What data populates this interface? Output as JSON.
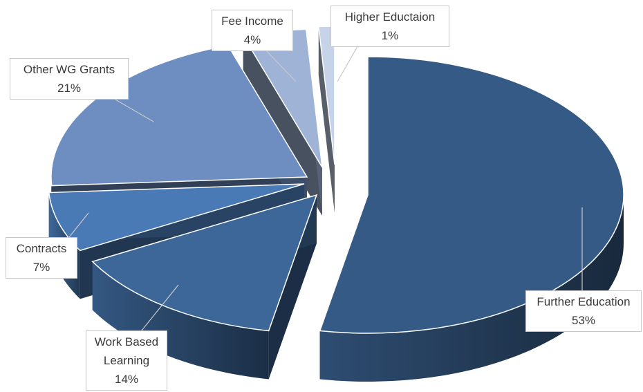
{
  "chart_data": {
    "type": "pie",
    "style": "3d-exploded",
    "slices": [
      {
        "label": "Further Education",
        "value": 53,
        "display": "53%",
        "color": "#365a86"
      },
      {
        "label": "Work Based Learning",
        "label_lines": [
          "Work Based",
          "Learning"
        ],
        "value": 14,
        "display": "14%",
        "color": "#3d6799"
      },
      {
        "label": "Contracts",
        "value": 7,
        "display": "7%",
        "color": "#4a7ab5"
      },
      {
        "label": "Other WG Grants",
        "value": 21,
        "display": "21%",
        "color": "#6e8ec2"
      },
      {
        "label": "Fee Income",
        "value": 4,
        "display": "4%",
        "color": "#9fb3d6"
      },
      {
        "label": "Higher Eductaion",
        "value": 1,
        "display": "1%",
        "color": "#c6d3e8"
      }
    ],
    "legend": "none",
    "data_labels": "callouts"
  }
}
